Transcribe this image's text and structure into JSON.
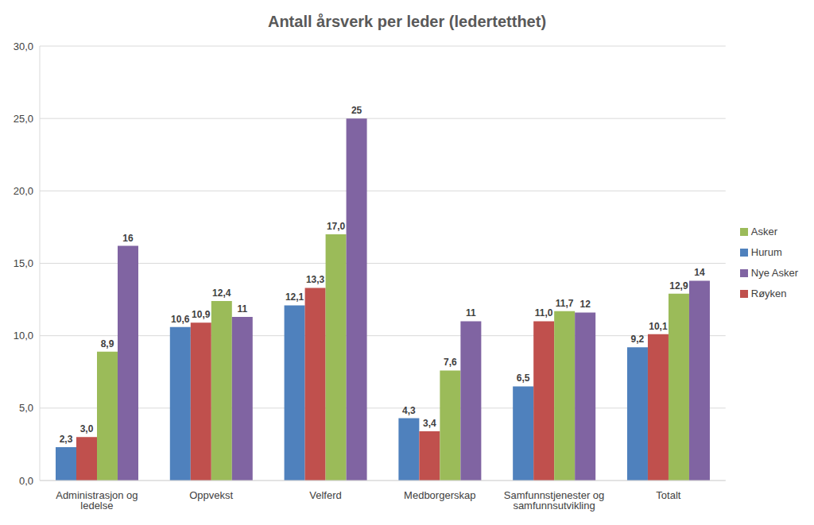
{
  "chart_data": {
    "type": "bar",
    "title": "Antall årsverk per leder (ledertetthet)",
    "categories": [
      "Administrasjon og ledelse",
      "Oppvekst",
      "Velferd",
      "Medborgerskap",
      "Samfunnstjenester og samfunnsutvikling",
      "Totalt"
    ],
    "series": [
      {
        "name": "Hurum",
        "color": "#4f81bd",
        "values": [
          2.3,
          10.6,
          12.1,
          4.3,
          6.5,
          9.2
        ],
        "value_labels": [
          "2,3",
          "10,6",
          "12,1",
          "4,3",
          "6,5",
          "9,2"
        ]
      },
      {
        "name": "Røyken",
        "color": "#c0504d",
        "values": [
          3.0,
          10.9,
          13.3,
          3.4,
          11.0,
          10.1
        ],
        "value_labels": [
          "3,0",
          "10,9",
          "13,3",
          "3,4",
          "11,0",
          "10,1"
        ]
      },
      {
        "name": "Asker",
        "color": "#9bbb59",
        "values": [
          8.9,
          12.4,
          17.0,
          7.6,
          11.7,
          12.9
        ],
        "value_labels": [
          "8,9",
          "12,4",
          "17,0",
          "7,6",
          "11,7",
          "12,9"
        ]
      },
      {
        "name": "Nye Asker",
        "color": "#8064a2",
        "values": [
          16.2,
          11.3,
          25,
          11,
          11.6,
          13.8
        ],
        "value_labels": [
          "16",
          "11",
          "25",
          "11",
          "12",
          "14"
        ]
      }
    ],
    "ylim": [
      0,
      30
    ],
    "yticks": [
      {
        "value": 0,
        "label": "0,0"
      },
      {
        "value": 5,
        "label": "5,0"
      },
      {
        "value": 10,
        "label": "10,0"
      },
      {
        "value": 15,
        "label": "15,0"
      },
      {
        "value": 20,
        "label": "20,0"
      },
      {
        "value": 25,
        "label": "25,0"
      },
      {
        "value": 30,
        "label": "30,0"
      }
    ],
    "grid": true,
    "legend": "right",
    "data_labels": true
  }
}
